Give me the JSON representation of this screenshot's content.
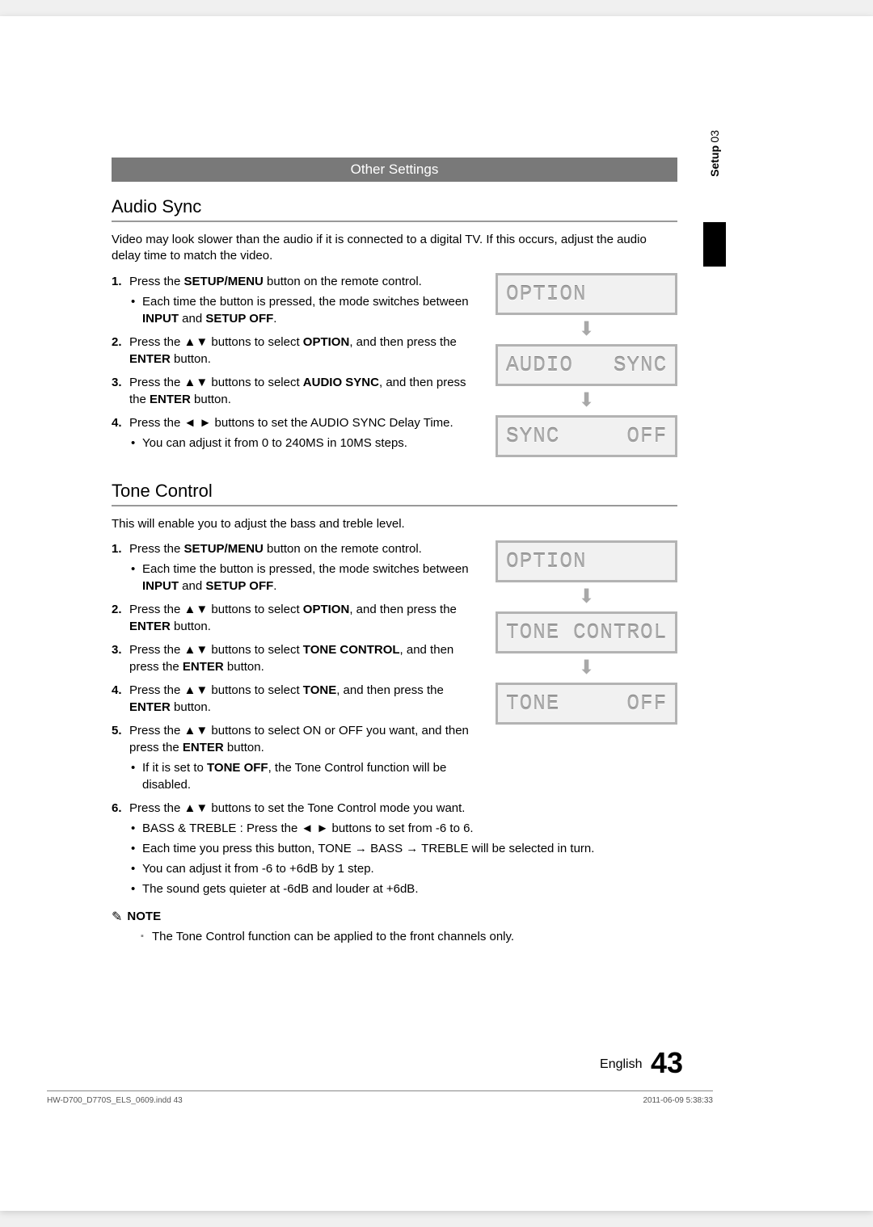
{
  "side": {
    "num": "03",
    "label": "Setup"
  },
  "bar": {
    "title": "Other Settings"
  },
  "sec1": {
    "heading": "Audio Sync",
    "intro": "Video may look slower than the audio if it is connected to a digital TV. If this occurs, adjust the audio delay time to match the video.",
    "step1_a": "Press the ",
    "step1_b": "SETUP/MENU",
    "step1_c": " button on the remote control.",
    "step1_sub_a": "Each time the button is pressed, the mode switches between ",
    "step1_sub_b": "INPUT",
    "step1_sub_c": " and ",
    "step1_sub_d": "SETUP OFF",
    "step1_sub_e": ".",
    "step2_a": "Press the ▲▼ buttons to select ",
    "step2_b": "OPTION",
    "step2_c": ", and then press the ",
    "step2_d": "ENTER",
    "step2_e": " button.",
    "step3_a": "Press the ▲▼ buttons to select ",
    "step3_b": "AUDIO SYNC",
    "step3_c": ", and then press the ",
    "step3_d": "ENTER",
    "step3_e": " button.",
    "step4_a": "Press the ◄ ► buttons to set the AUDIO SYNC Delay Time.",
    "step4_sub": "You can adjust it from 0 to 240MS in 10MS steps.",
    "lcd1": "OPTION",
    "lcd2": "AUDIO   SYNC",
    "lcd3": "SYNC     OFF"
  },
  "sec2": {
    "heading": "Tone Control",
    "intro": "This will enable you to adjust the bass and treble level.",
    "step1_a": "Press the ",
    "step1_b": "SETUP/MENU",
    "step1_c": " button on the remote control.",
    "step1_sub_a": "Each time the button is pressed, the mode switches between ",
    "step1_sub_b": "INPUT",
    "step1_sub_c": " and ",
    "step1_sub_d": "SETUP OFF",
    "step1_sub_e": ".",
    "step2_a": "Press the ▲▼ buttons to select ",
    "step2_b": "OPTION",
    "step2_c": ", and then press the ",
    "step2_d": "ENTER",
    "step2_e": " button.",
    "step3_a": "Press the ▲▼ buttons to select ",
    "step3_b": "TONE CONTROL",
    "step3_c": ", and then press the ",
    "step3_d": "ENTER",
    "step3_e": " button.",
    "step4_a": "Press the ▲▼ buttons to select ",
    "step4_b": "TONE",
    "step4_c": ", and then press the ",
    "step4_d": "ENTER",
    "step4_e": " button.",
    "step5_a": "Press the ▲▼ buttons to select ON or OFF you want, and then press the ",
    "step5_b": "ENTER",
    "step5_c": " button.",
    "step5_sub_a": "If it is set to ",
    "step5_sub_b": "TONE OFF",
    "step5_sub_c": ", the Tone Control function will be disabled.",
    "step6_a": "Press the ▲▼ buttons to set the Tone Control mode you want.",
    "step6_sub1": "BASS & TREBLE : Press the ◄ ► buttons to set from -6 to 6.",
    "step6_sub2": "Each time you press this button, TONE → BASS → TREBLE will be selected in turn.",
    "step6_sub3": "You can adjust it from -6 to +6dB by 1 step.",
    "step6_sub4": "The sound gets quieter at -6dB and louder at +6dB.",
    "lcd1": "OPTION",
    "lcd2": "TONE CONTROL",
    "lcd3": "TONE     OFF",
    "note_label": "NOTE",
    "note_text": "The Tone Control function can be applied to the front channels only."
  },
  "footer": {
    "lang": "English",
    "page": "43"
  },
  "footline": {
    "left": "HW-D700_D770S_ELS_0609.indd   43",
    "right": "2011-06-09     5:38:33"
  }
}
